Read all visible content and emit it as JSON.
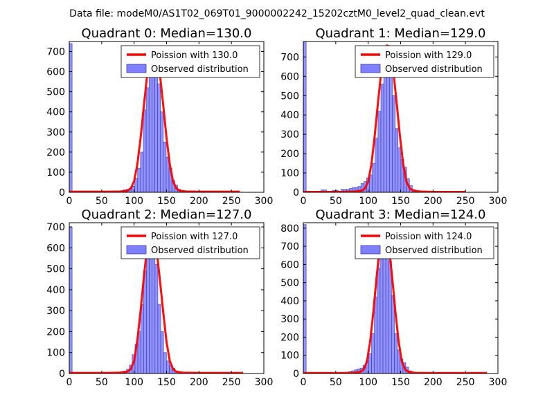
{
  "figure": {
    "suptitle": "Data file: modeM0/AS1T02_069T01_9000002242_15202cztM0_level2_quad_clean.evt"
  },
  "colors": {
    "bar_fill": "#7f7fff",
    "bar_edge": "#3a3aa8",
    "poisson_line": "#ff0000",
    "axes": "#000000",
    "background": "#ffffff"
  },
  "chart_data": [
    {
      "type": "bar",
      "title": "Quadrant 0: Median=130.0",
      "xlim": [
        0,
        300
      ],
      "ylim": [
        0,
        750
      ],
      "xticks": [
        0,
        50,
        100,
        150,
        200,
        250,
        300
      ],
      "yticks": [
        0,
        100,
        200,
        300,
        400,
        500,
        600,
        700
      ],
      "legend_position": "upper-right",
      "series": [
        {
          "name": "Poission with 130.0",
          "type": "line",
          "mean": 130.0,
          "x": [
            0,
            60,
            80,
            90,
            95,
            100,
            105,
            110,
            115,
            120,
            125,
            130,
            135,
            140,
            145,
            150,
            155,
            160,
            165,
            170,
            180,
            200,
            263
          ],
          "y": [
            3,
            3,
            4,
            8,
            20,
            55,
            140,
            270,
            430,
            580,
            690,
            720,
            690,
            580,
            430,
            270,
            140,
            55,
            20,
            8,
            4,
            3,
            3
          ]
        },
        {
          "name": "Observed distribution",
          "type": "bar",
          "bin_width": 4.4,
          "x": [
            0,
            79,
            83.4,
            87.8,
            92.2,
            96.6,
            101,
            105.4,
            109.8,
            114.2,
            118.6,
            123,
            127.4,
            131.8,
            136.2,
            140.6,
            145,
            149.4,
            153.8,
            158.2,
            162.6,
            167,
            171.4
          ],
          "values": [
            740,
            8,
            12,
            15,
            20,
            30,
            70,
            120,
            200,
            410,
            520,
            700,
            710,
            650,
            540,
            400,
            250,
            175,
            120,
            60,
            35,
            15,
            5
          ]
        }
      ]
    },
    {
      "type": "bar",
      "title": "Quadrant 1: Median=129.0",
      "xlim": [
        0,
        300
      ],
      "ylim": [
        0,
        780
      ],
      "xticks": [
        0,
        50,
        100,
        150,
        200,
        250,
        300
      ],
      "yticks": [
        0,
        100,
        200,
        300,
        400,
        500,
        600,
        700
      ],
      "legend_position": "upper-right",
      "series": [
        {
          "name": "Poission with 129.0",
          "type": "line",
          "mean": 129.0,
          "x": [
            0,
            60,
            80,
            90,
            95,
            100,
            105,
            110,
            115,
            120,
            125,
            129,
            134,
            139,
            144,
            149,
            154,
            159,
            164,
            170,
            180,
            200,
            250
          ],
          "y": [
            2,
            2,
            4,
            8,
            20,
            55,
            145,
            290,
            460,
            620,
            730,
            760,
            730,
            620,
            460,
            290,
            145,
            55,
            20,
            8,
            4,
            2,
            2
          ]
        },
        {
          "name": "Observed distribution",
          "type": "bar",
          "bin_width": 4.4,
          "x": [
            0,
            27,
            31.4,
            45,
            49.4,
            58,
            62.4,
            66.8,
            71.2,
            75.6,
            80,
            84.4,
            88.8,
            93.2,
            97.6,
            102,
            106.4,
            110.8,
            115.2,
            119.6,
            124,
            128.4,
            132.8,
            137.2,
            141.6,
            146,
            150.4,
            154.8,
            159.2,
            163.6,
            168
          ],
          "values": [
            780,
            12,
            12,
            10,
            10,
            15,
            15,
            15,
            20,
            25,
            25,
            30,
            45,
            55,
            75,
            90,
            150,
            280,
            420,
            560,
            740,
            760,
            620,
            500,
            330,
            230,
            170,
            130,
            70,
            35,
            15
          ]
        }
      ]
    },
    {
      "type": "bar",
      "title": "Quadrant 2: Median=127.0",
      "xlim": [
        0,
        300
      ],
      "ylim": [
        0,
        720
      ],
      "xticks": [
        0,
        50,
        100,
        150,
        200,
        250,
        300
      ],
      "yticks": [
        0,
        100,
        200,
        300,
        400,
        500,
        600,
        700
      ],
      "legend_position": "upper-right",
      "series": [
        {
          "name": "Poission with 127.0",
          "type": "line",
          "mean": 127.0,
          "x": [
            0,
            60,
            80,
            90,
            95,
            100,
            105,
            110,
            115,
            120,
            124,
            127,
            130,
            135,
            140,
            145,
            150,
            155,
            160,
            165,
            175,
            200,
            268
          ],
          "y": [
            3,
            3,
            4,
            9,
            22,
            60,
            160,
            300,
            460,
            600,
            670,
            690,
            670,
            580,
            440,
            290,
            150,
            60,
            22,
            9,
            4,
            3,
            3
          ]
        },
        {
          "name": "Observed distribution",
          "type": "bar",
          "bin_width": 4.4,
          "x": [
            0,
            75,
            79.4,
            83.8,
            88.2,
            92.6,
            97,
            101.4,
            105.8,
            110.2,
            114.6,
            119,
            123.4,
            127.8,
            132.2,
            136.6,
            141,
            145.4,
            149.8,
            154.2,
            158.6,
            163
          ],
          "values": [
            700,
            5,
            10,
            12,
            20,
            40,
            90,
            140,
            200,
            330,
            490,
            550,
            690,
            690,
            520,
            330,
            200,
            100,
            60,
            40,
            25,
            10
          ]
        }
      ]
    },
    {
      "type": "bar",
      "title": "Quadrant 3: Median=124.0",
      "xlim": [
        0,
        300
      ],
      "ylim": [
        0,
        830
      ],
      "xticks": [
        0,
        50,
        100,
        150,
        200,
        250,
        300
      ],
      "yticks": [
        0,
        100,
        200,
        300,
        400,
        500,
        600,
        700,
        800
      ],
      "legend_position": "upper-right",
      "series": [
        {
          "name": "Poission with 124.0",
          "type": "line",
          "mean": 124.0,
          "x": [
            0,
            60,
            78,
            88,
            93,
            98,
            103,
            108,
            113,
            118,
            121,
            124,
            127,
            132,
            137,
            142,
            147,
            152,
            157,
            162,
            172,
            200,
            283
          ],
          "y": [
            3,
            3,
            4,
            9,
            22,
            65,
            175,
            340,
            530,
            700,
            780,
            800,
            780,
            700,
            530,
            340,
            175,
            65,
            22,
            9,
            4,
            3,
            3
          ]
        },
        {
          "name": "Observed distribution",
          "type": "bar",
          "bin_width": 4.4,
          "x": [
            0,
            70,
            74.4,
            78.8,
            83.2,
            87.6,
            92,
            96.4,
            100.8,
            105.2,
            109.6,
            114,
            118.4,
            122.8,
            127.2,
            131.6,
            136,
            140.4,
            144.8,
            149.2,
            153.6,
            158,
            162.4,
            166.8,
            171.2
          ],
          "values": [
            820,
            10,
            15,
            20,
            25,
            30,
            45,
            70,
            110,
            220,
            420,
            580,
            650,
            790,
            770,
            620,
            430,
            220,
            130,
            80,
            60,
            35,
            15,
            8,
            5
          ]
        }
      ]
    }
  ]
}
